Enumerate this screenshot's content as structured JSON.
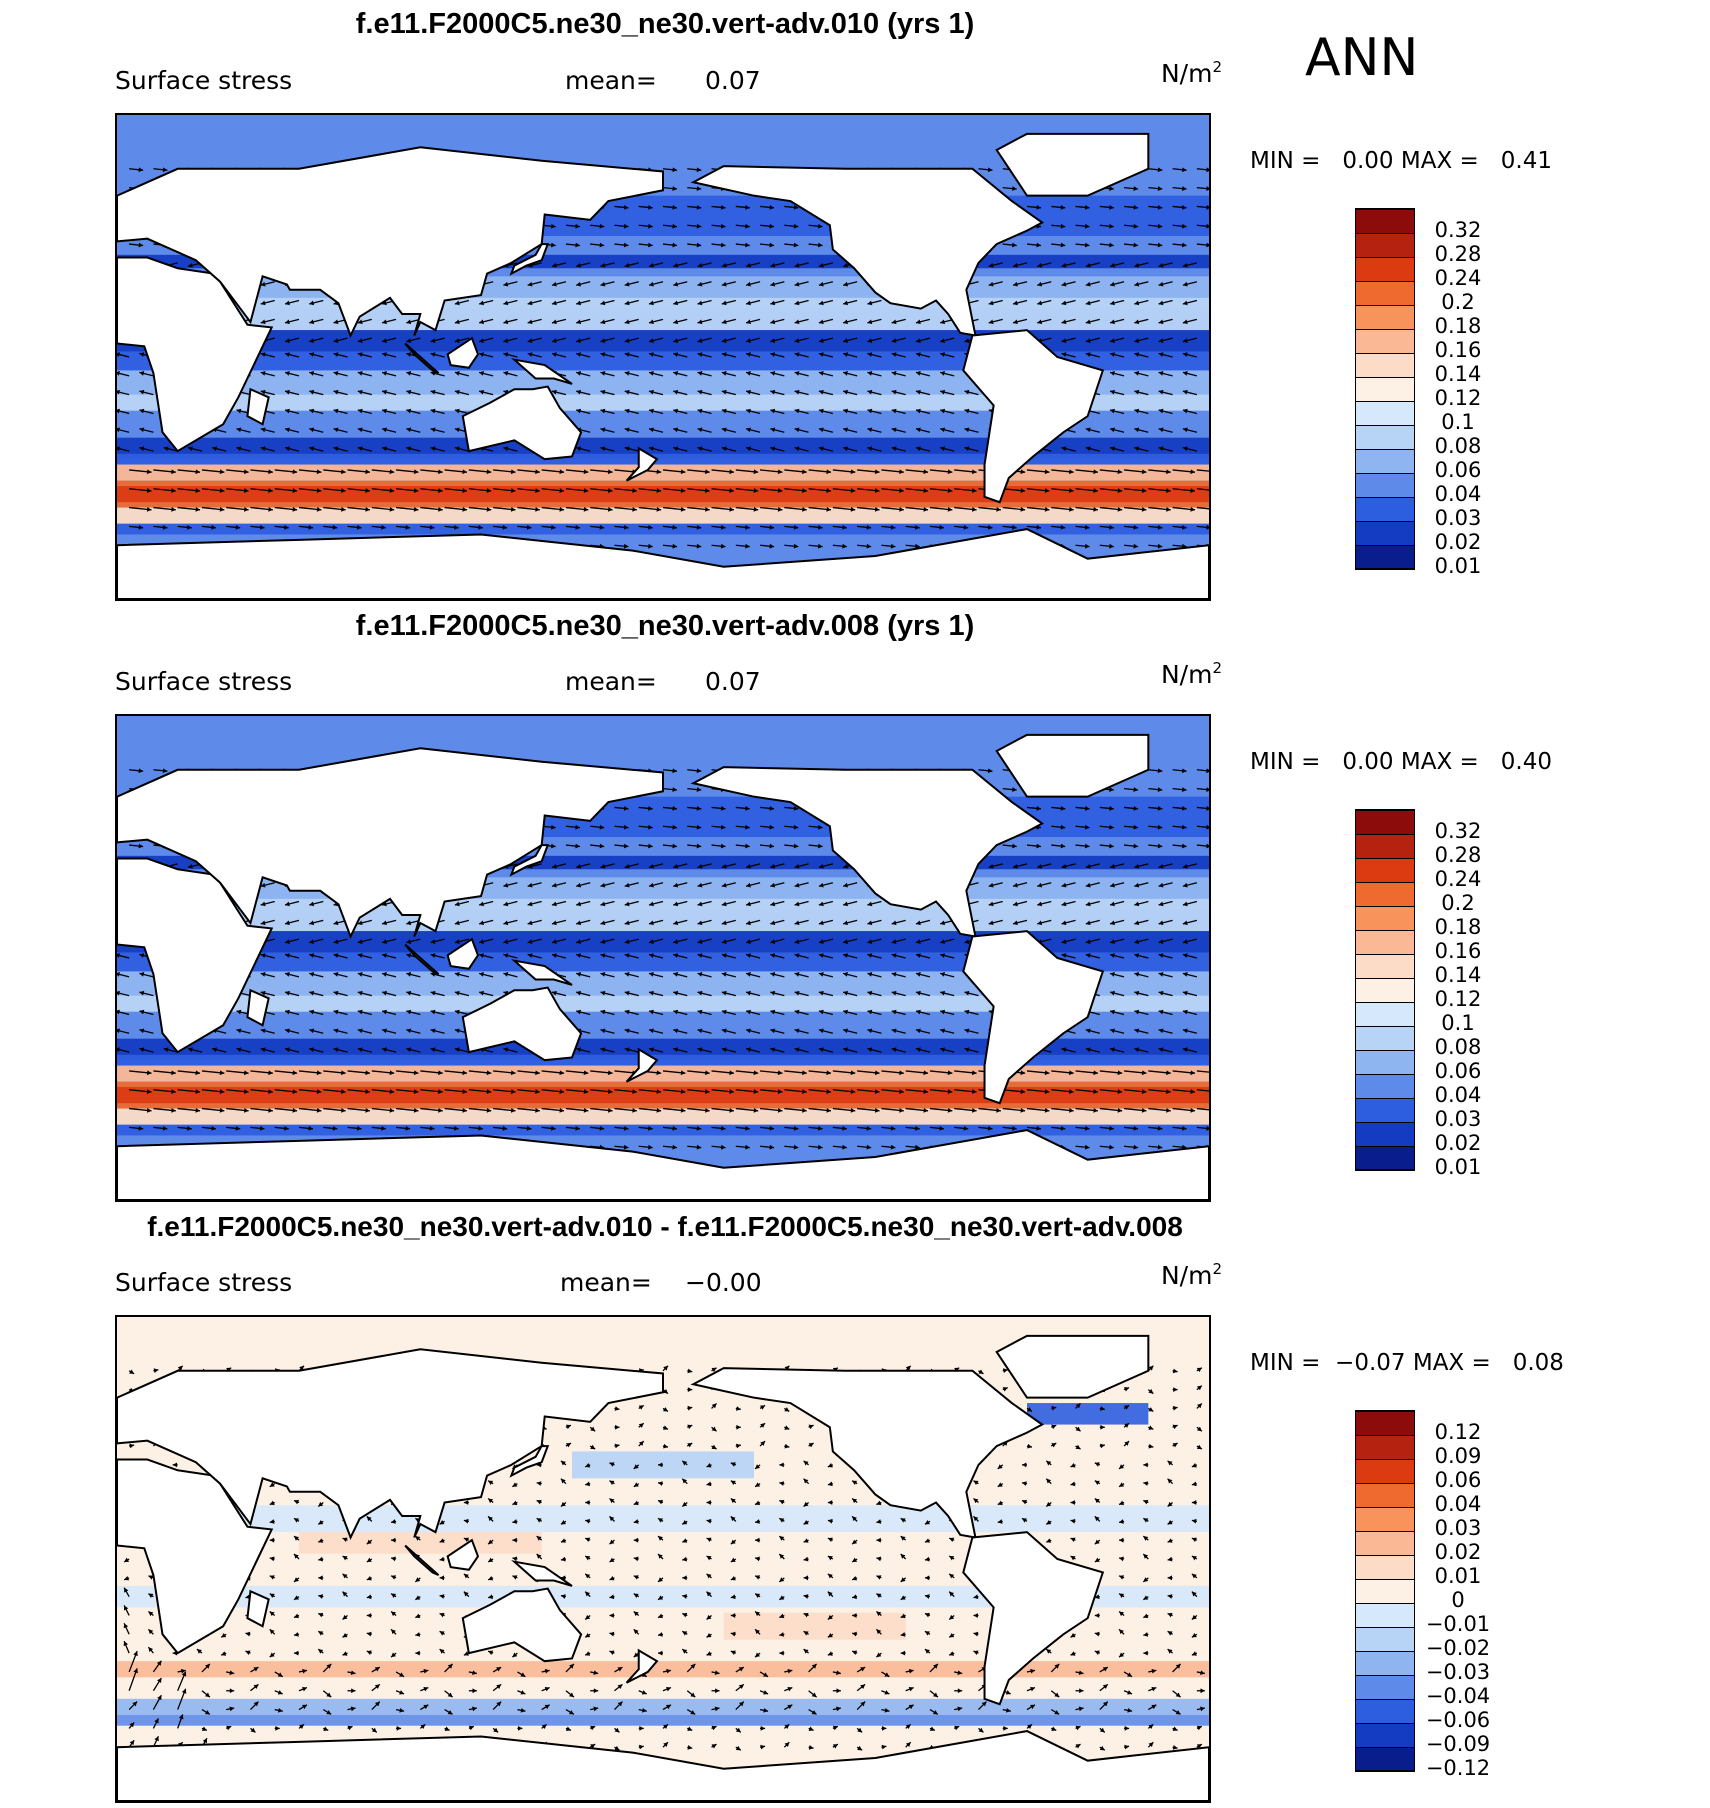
{
  "season": "ANN",
  "chart_data": [
    {
      "type": "heatmap",
      "title": "f.e11.F2000C5.ne30_ne30.vert-adv.010 (yrs 1)",
      "variable": "Surface stress",
      "mean_label": "mean=",
      "mean_value": "0.07",
      "units_base": "N/m",
      "units_exp": "2",
      "min_label": "MIN =",
      "min_value": "0.00",
      "max_label": "MAX =",
      "max_value": "0.41",
      "colorbar_levels": [
        "0.32",
        "0.28",
        "0.24",
        "0.2",
        "0.18",
        "0.16",
        "0.14",
        "0.12",
        "0.1",
        "0.08",
        "0.06",
        "0.04",
        "0.03",
        "0.02",
        "0.01"
      ],
      "colorbar_colors": [
        "#8c0c0c",
        "#b5220f",
        "#dc3b12",
        "#ef6a2e",
        "#f7935b",
        "#fbb894",
        "#fcdcc6",
        "#fdf0e4",
        "#d6e8fb",
        "#b7d3f6",
        "#8fb5f0",
        "#5e8bea",
        "#2e5ee0",
        "#143cc2",
        "#0a1d8c"
      ],
      "overlay": "wind stress vectors",
      "pattern": "westerly band 40-60S (high), blue elsewhere"
    },
    {
      "type": "heatmap",
      "title": "f.e11.F2000C5.ne30_ne30.vert-adv.008 (yrs 1)",
      "variable": "Surface stress",
      "mean_label": "mean=",
      "mean_value": "0.07",
      "units_base": "N/m",
      "units_exp": "2",
      "min_label": "MIN =",
      "min_value": "0.00",
      "max_label": "MAX =",
      "max_value": "0.40",
      "colorbar_levels": [
        "0.32",
        "0.28",
        "0.24",
        "0.2",
        "0.18",
        "0.16",
        "0.14",
        "0.12",
        "0.1",
        "0.08",
        "0.06",
        "0.04",
        "0.03",
        "0.02",
        "0.01"
      ],
      "colorbar_colors": [
        "#8c0c0c",
        "#b5220f",
        "#dc3b12",
        "#ef6a2e",
        "#f7935b",
        "#fbb894",
        "#fcdcc6",
        "#fdf0e4",
        "#d6e8fb",
        "#b7d3f6",
        "#8fb5f0",
        "#5e8bea",
        "#2e5ee0",
        "#143cc2",
        "#0a1d8c"
      ],
      "overlay": "wind stress vectors",
      "pattern": "westerly band 40-60S (high), blue elsewhere"
    },
    {
      "type": "heatmap",
      "title": "f.e11.F2000C5.ne30_ne30.vert-adv.010 - f.e11.F2000C5.ne30_ne30.vert-adv.008",
      "variable": "Surface stress",
      "mean_label": "mean=",
      "mean_value": "−0.00",
      "units_base": "N/m",
      "units_exp": "2",
      "min_label": "MIN =",
      "min_value": "−0.07",
      "max_label": "MAX =",
      "max_value": "0.08",
      "colorbar_levels": [
        "0.12",
        "0.09",
        "0.06",
        "0.04",
        "0.03",
        "0.02",
        "0.01",
        "0",
        "−0.01",
        "−0.02",
        "−0.03",
        "−0.04",
        "−0.06",
        "−0.09",
        "−0.12"
      ],
      "colorbar_colors": [
        "#8c0c0c",
        "#b5220f",
        "#dc3b12",
        "#ef6a2e",
        "#f7935b",
        "#fbb894",
        "#fcdcc6",
        "#fdf0e4",
        "#d6e8fb",
        "#b7d3f6",
        "#8fb5f0",
        "#5e8bea",
        "#2e5ee0",
        "#143cc2",
        "#0a1d8c"
      ],
      "overlay": "difference wind stress vectors",
      "pattern": "mostly near-zero, light red/blue patches"
    }
  ]
}
